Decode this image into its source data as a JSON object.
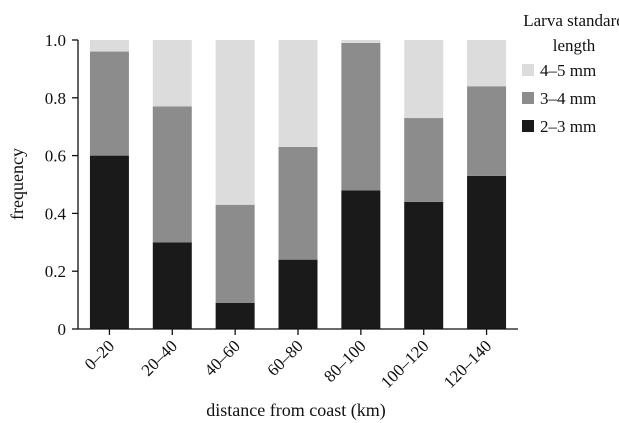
{
  "chart_data": {
    "type": "bar",
    "stacked": true,
    "categories": [
      "0–20",
      "20–40",
      "40–60",
      "60–80",
      "80–100",
      "100–120",
      "120–140"
    ],
    "series": [
      {
        "name": "2–3 mm",
        "color": "#1a1a1a",
        "values": [
          0.6,
          0.3,
          0.09,
          0.24,
          0.48,
          0.44,
          0.53
        ]
      },
      {
        "name": "3–4 mm",
        "color": "#8c8c8c",
        "values": [
          0.36,
          0.47,
          0.34,
          0.39,
          0.51,
          0.29,
          0.31
        ]
      },
      {
        "name": "4–5 mm",
        "color": "#dcdcdc",
        "values": [
          0.04,
          0.23,
          0.57,
          0.37,
          0.01,
          0.27,
          0.16
        ]
      }
    ],
    "yticks": [
      "0",
      "0.2",
      "0.4",
      "0.6",
      "0.8",
      "1.0"
    ],
    "ylim": [
      0,
      1.0
    ],
    "xlabel": "distance from coast (km)",
    "ylabel": "frequency",
    "legend_title_lines": [
      "Larva standard",
      "length"
    ],
    "legend_position": "top-right",
    "grid": false
  }
}
